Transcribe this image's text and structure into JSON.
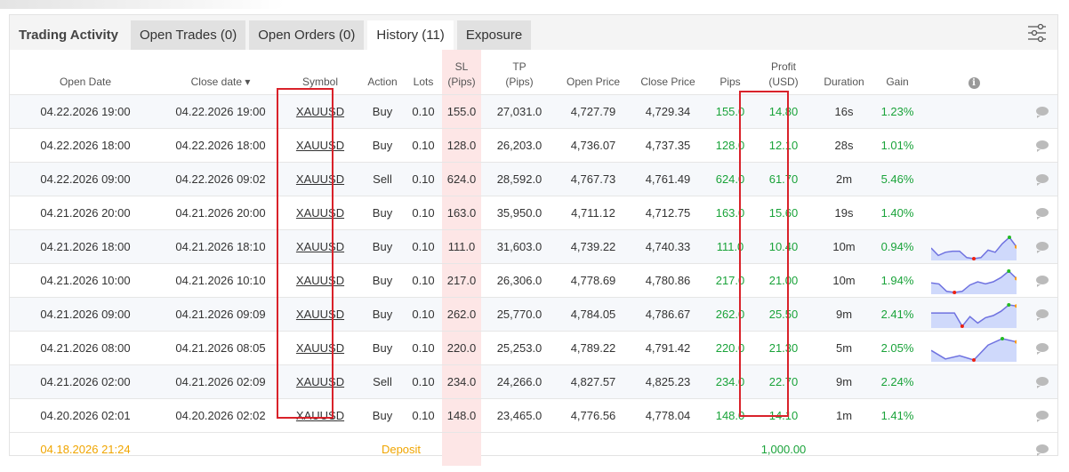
{
  "tabs": {
    "title": "Trading Activity",
    "open_trades": "Open Trades (0)",
    "open_orders": "Open Orders (0)",
    "history": "History (11)",
    "exposure": "Exposure"
  },
  "headers": {
    "open_date": "Open Date",
    "close_date": "Close date ▾",
    "symbol": "Symbol",
    "action": "Action",
    "lots": "Lots",
    "sl1": "SL",
    "sl2": "(Pips)",
    "tp1": "TP",
    "tp2": "(Pips)",
    "open_price": "Open Price",
    "close_price": "Close Price",
    "pips": "Pips",
    "profit1": "Profit",
    "profit2": "(USD)",
    "duration": "Duration",
    "gain": "Gain",
    "info": "i"
  },
  "rows": [
    {
      "open": "04.22.2026 19:00",
      "close": "04.22.2026 19:00",
      "symbol": "XAUUSD",
      "action": "Buy",
      "lots": "0.10",
      "sl": "155.0",
      "tp": "27,031.0",
      "op": "4,727.79",
      "cp": "4,729.34",
      "pips": "155.0",
      "profit": "14.80",
      "dur": "16s",
      "gain": "1.23%"
    },
    {
      "open": "04.22.2026 18:00",
      "close": "04.22.2026 18:00",
      "symbol": "XAUUSD",
      "action": "Buy",
      "lots": "0.10",
      "sl": "128.0",
      "tp": "26,203.0",
      "op": "4,736.07",
      "cp": "4,737.35",
      "pips": "128.0",
      "profit": "12.10",
      "dur": "28s",
      "gain": "1.01%"
    },
    {
      "open": "04.22.2026 09:00",
      "close": "04.22.2026 09:02",
      "symbol": "XAUUSD",
      "action": "Sell",
      "lots": "0.10",
      "sl": "624.0",
      "tp": "28,592.0",
      "op": "4,767.73",
      "cp": "4,761.49",
      "pips": "624.0",
      "profit": "61.70",
      "dur": "2m",
      "gain": "5.46%"
    },
    {
      "open": "04.21.2026 20:00",
      "close": "04.21.2026 20:00",
      "symbol": "XAUUSD",
      "action": "Buy",
      "lots": "0.10",
      "sl": "163.0",
      "tp": "35,950.0",
      "op": "4,711.12",
      "cp": "4,712.75",
      "pips": "163.0",
      "profit": "15.60",
      "dur": "19s",
      "gain": "1.40%"
    },
    {
      "open": "04.21.2026 18:00",
      "close": "04.21.2026 18:10",
      "symbol": "XAUUSD",
      "action": "Buy",
      "lots": "0.10",
      "sl": "111.0",
      "tp": "31,603.0",
      "op": "4,739.22",
      "cp": "4,740.33",
      "pips": "111.0",
      "profit": "10.40",
      "dur": "10m",
      "gain": "0.94%",
      "spark": [
        0.5,
        0.15,
        0.3,
        0.35,
        0.35,
        0.05,
        0,
        0.05,
        0.4,
        0.3,
        0.7,
        1,
        0.55
      ]
    },
    {
      "open": "04.21.2026 10:00",
      "close": "04.21.2026 10:10",
      "symbol": "XAUUSD",
      "action": "Buy",
      "lots": "0.10",
      "sl": "217.0",
      "tp": "26,306.0",
      "op": "4,778.69",
      "cp": "4,780.86",
      "pips": "217.0",
      "profit": "21.00",
      "dur": "10m",
      "gain": "1.94%",
      "spark": [
        0.45,
        0.4,
        0.05,
        0,
        0.05,
        0.35,
        0.5,
        0.4,
        0.5,
        0.7,
        1,
        0.65
      ]
    },
    {
      "open": "04.21.2026 09:00",
      "close": "04.21.2026 09:09",
      "symbol": "XAUUSD",
      "action": "Buy",
      "lots": "0.10",
      "sl": "262.0",
      "tp": "25,770.0",
      "op": "4,784.05",
      "cp": "4,786.67",
      "pips": "262.0",
      "profit": "25.50",
      "dur": "9m",
      "gain": "2.41%",
      "spark": [
        0.62,
        0.62,
        0.62,
        0.62,
        0,
        0.45,
        0.15,
        0.4,
        0.5,
        0.7,
        1,
        0.95
      ]
    },
    {
      "open": "04.21.2026 08:00",
      "close": "04.21.2026 08:05",
      "symbol": "XAUUSD",
      "action": "Buy",
      "lots": "0.10",
      "sl": "220.0",
      "tp": "25,253.0",
      "op": "4,789.22",
      "cp": "4,791.42",
      "pips": "220.0",
      "profit": "21.30",
      "dur": "5m",
      "gain": "2.05%",
      "spark": [
        0.45,
        0.05,
        0.2,
        0,
        0.7,
        1,
        0.85
      ]
    },
    {
      "open": "04.21.2026 02:00",
      "close": "04.21.2026 02:09",
      "symbol": "XAUUSD",
      "action": "Sell",
      "lots": "0.10",
      "sl": "234.0",
      "tp": "24,266.0",
      "op": "4,827.57",
      "cp": "4,825.23",
      "pips": "234.0",
      "profit": "22.70",
      "dur": "9m",
      "gain": "2.24%"
    },
    {
      "open": "04.20.2026 02:01",
      "close": "04.20.2026 02:02",
      "symbol": "XAUUSD",
      "action": "Buy",
      "lots": "0.10",
      "sl": "148.0",
      "tp": "23,465.0",
      "op": "4,776.56",
      "cp": "4,778.04",
      "pips": "148.0",
      "profit": "14.10",
      "dur": "1m",
      "gain": "1.41%"
    }
  ],
  "deposit": {
    "date": "04.18.2026 21:24",
    "label": "Deposit",
    "amount": "1,000.00"
  },
  "colors": {
    "green": "#1aa33a",
    "deposit": "#f0a500",
    "highlight": "#d9222a",
    "spark_line": "#6f72e0",
    "spark_fill": "#cfd9fb"
  }
}
